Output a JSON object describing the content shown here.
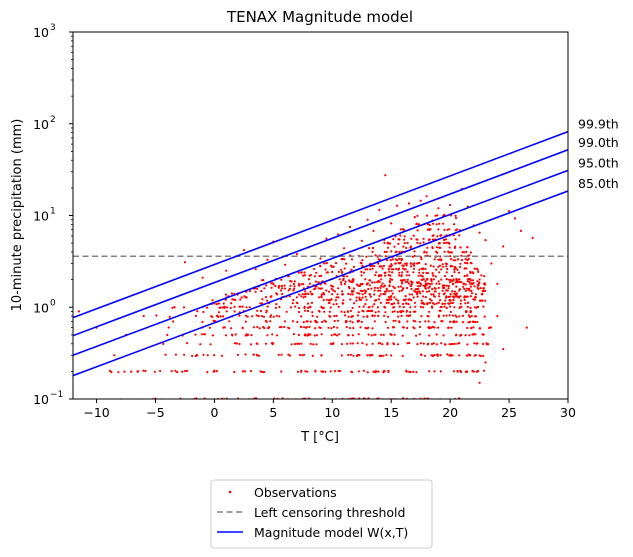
{
  "chart_data": {
    "type": "scatter",
    "title": "TENAX Magnitude model",
    "xlabel": "T [°C]",
    "ylabel": "10-minute precipitation (mm)",
    "xlim": [
      -12,
      30
    ],
    "ylim": [
      0.1,
      1000
    ],
    "yscale": "log",
    "x_ticks": [
      -10,
      -5,
      0,
      5,
      10,
      15,
      20,
      25,
      30
    ],
    "x_tick_labels": [
      "−10",
      "−5",
      "0",
      "5",
      "10",
      "15",
      "20",
      "25",
      "30"
    ],
    "y_ticks": [
      0.1,
      1,
      10,
      100,
      1000
    ],
    "y_tick_labels": [
      {
        "base": "10",
        "exp": "−1"
      },
      {
        "base": "10",
        "exp": "0"
      },
      {
        "base": "10",
        "exp": "1"
      },
      {
        "base": "10",
        "exp": "2"
      },
      {
        "base": "10",
        "exp": "3"
      }
    ],
    "grid": false,
    "legend_position": "below",
    "legend": [
      {
        "label": "Observations",
        "kind": "marker",
        "color": "#ff0000"
      },
      {
        "label": "Left censoring threshold",
        "kind": "dashed-line",
        "color": "#808080"
      },
      {
        "label": "Magnitude model W(x,T)",
        "kind": "line",
        "color": "#0000ff"
      }
    ],
    "threshold": {
      "value": 3.6,
      "color": "#808080"
    },
    "model_lines": {
      "color": "#0000ff",
      "x_range": [
        -12,
        30
      ],
      "lines": [
        {
          "label": "99.9th",
          "y_start": 0.77,
          "y_end": 82
        },
        {
          "label": "99.0th",
          "y_start": 0.49,
          "y_end": 52
        },
        {
          "label": "95.0th",
          "y_start": 0.3,
          "y_end": 31
        },
        {
          "label": "85.0th",
          "y_start": 0.18,
          "y_end": 18.5
        }
      ]
    },
    "observations": {
      "color": "#ff0000",
      "rows": [
        {
          "y": 0.1,
          "x_range": [
            -9,
            21.5
          ]
        },
        {
          "y": 0.2,
          "x_range": [
            -9.5,
            23
          ]
        },
        {
          "y": 0.3,
          "x_range": [
            -5.5,
            23
          ]
        },
        {
          "y": 0.4,
          "x_range": [
            -5,
            23.5
          ]
        },
        {
          "y": 0.5,
          "x_range": [
            -3,
            23
          ]
        },
        {
          "y": 0.6,
          "x_range": [
            -4,
            23.5
          ]
        },
        {
          "y": 0.7,
          "x_range": [
            -2,
            22.5
          ]
        },
        {
          "y": 0.8,
          "x_range": [
            -5,
            23
          ]
        },
        {
          "y": 0.9,
          "x_range": [
            -1.5,
            22
          ]
        },
        {
          "y": 1.0,
          "x_range": [
            -4,
            23
          ]
        },
        {
          "y": 1.1,
          "x_range": [
            -0.5,
            22
          ]
        },
        {
          "y": 1.2,
          "x_range": [
            -1,
            23
          ]
        },
        {
          "y": 1.3,
          "x_range": [
            0,
            22.5
          ]
        },
        {
          "y": 1.4,
          "x_range": [
            0.5,
            23
          ]
        },
        {
          "y": 1.5,
          "x_range": [
            2,
            23
          ]
        },
        {
          "y": 1.6,
          "x_range": [
            2,
            23
          ]
        },
        {
          "y": 1.7,
          "x_range": [
            3,
            22.5
          ]
        },
        {
          "y": 1.8,
          "x_range": [
            4,
            23
          ]
        },
        {
          "y": 1.9,
          "x_range": [
            5,
            22.5
          ]
        },
        {
          "y": 2.0,
          "x_range": [
            4,
            23
          ]
        },
        {
          "y": 2.2,
          "x_range": [
            6,
            23
          ]
        },
        {
          "y": 2.4,
          "x_range": [
            7,
            22.5
          ]
        },
        {
          "y": 2.6,
          "x_range": [
            8,
            22.5
          ]
        },
        {
          "y": 2.8,
          "x_range": [
            8.5,
            22
          ]
        },
        {
          "y": 3.0,
          "x_range": [
            9,
            22
          ]
        },
        {
          "y": 3.3,
          "x_range": [
            10,
            22
          ]
        },
        {
          "y": 3.6,
          "x_range": [
            11,
            22
          ]
        },
        {
          "y": 4.0,
          "x_range": [
            12,
            22
          ]
        },
        {
          "y": 4.5,
          "x_range": [
            13,
            21.5
          ]
        },
        {
          "y": 5.0,
          "x_range": [
            14,
            21.5
          ]
        },
        {
          "y": 5.5,
          "x_range": [
            14,
            21
          ]
        },
        {
          "y": 6.0,
          "x_range": [
            15,
            21
          ]
        },
        {
          "y": 7.0,
          "x_range": [
            15.5,
            21
          ]
        },
        {
          "y": 8.0,
          "x_range": [
            16,
            20.5
          ]
        },
        {
          "y": 10.0,
          "x_range": [
            17,
            20.5
          ]
        }
      ],
      "points": [
        {
          "x": -11.5,
          "y": 0.9
        },
        {
          "x": -10,
          "y": 0.6
        },
        {
          "x": -8.5,
          "y": 0.3
        },
        {
          "x": -7.5,
          "y": 0.5
        },
        {
          "x": -6,
          "y": 0.8
        },
        {
          "x": -4,
          "y": 0.5
        },
        {
          "x": -3.5,
          "y": 0.7
        },
        {
          "x": -2.5,
          "y": 3.1
        },
        {
          "x": -1,
          "y": 2.1
        },
        {
          "x": 0,
          "y": 1.1
        },
        {
          "x": 1,
          "y": 2.5
        },
        {
          "x": 2.5,
          "y": 4.2
        },
        {
          "x": 3,
          "y": 1.0
        },
        {
          "x": 3.5,
          "y": 2.6
        },
        {
          "x": 4.5,
          "y": 3.3
        },
        {
          "x": 5,
          "y": 5.2
        },
        {
          "x": 6,
          "y": 2.9
        },
        {
          "x": 7,
          "y": 3.8
        },
        {
          "x": 8,
          "y": 4.5
        },
        {
          "x": 9,
          "y": 3.4
        },
        {
          "x": 9.5,
          "y": 5.6
        },
        {
          "x": 10.5,
          "y": 6.2
        },
        {
          "x": 11,
          "y": 4.4
        },
        {
          "x": 11.5,
          "y": 7.5
        },
        {
          "x": 12.5,
          "y": 5.3
        },
        {
          "x": 13,
          "y": 9.0
        },
        {
          "x": 13.5,
          "y": 6.8
        },
        {
          "x": 14,
          "y": 11.5
        },
        {
          "x": 14.5,
          "y": 27.5
        },
        {
          "x": 15,
          "y": 8.2
        },
        {
          "x": 15.5,
          "y": 12.8
        },
        {
          "x": 16,
          "y": 7.1
        },
        {
          "x": 16.5,
          "y": 13.5
        },
        {
          "x": 17,
          "y": 9.6
        },
        {
          "x": 17.5,
          "y": 14.5
        },
        {
          "x": 18,
          "y": 16.2
        },
        {
          "x": 18.5,
          "y": 8.8
        },
        {
          "x": 19,
          "y": 12.0
        },
        {
          "x": 19.5,
          "y": 10.2
        },
        {
          "x": 20,
          "y": 13.0
        },
        {
          "x": 20.5,
          "y": 9.4
        },
        {
          "x": 21,
          "y": 19.5
        },
        {
          "x": 21.5,
          "y": 12.5
        },
        {
          "x": 22,
          "y": 7.8
        },
        {
          "x": 22.5,
          "y": 6.5
        },
        {
          "x": 23,
          "y": 5.4
        },
        {
          "x": 23.5,
          "y": 3.0
        },
        {
          "x": 24,
          "y": 1.8
        },
        {
          "x": 24.5,
          "y": 4.6
        },
        {
          "x": 25,
          "y": 11.2
        },
        {
          "x": 25.5,
          "y": 9.3
        },
        {
          "x": 26,
          "y": 6.8
        },
        {
          "x": 26.5,
          "y": 0.6
        },
        {
          "x": 27,
          "y": 5.7
        },
        {
          "x": 23,
          "y": 0.25
        },
        {
          "x": 22.5,
          "y": 0.15
        },
        {
          "x": 24,
          "y": 0.8
        },
        {
          "x": 24.5,
          "y": 0.35
        }
      ]
    }
  }
}
